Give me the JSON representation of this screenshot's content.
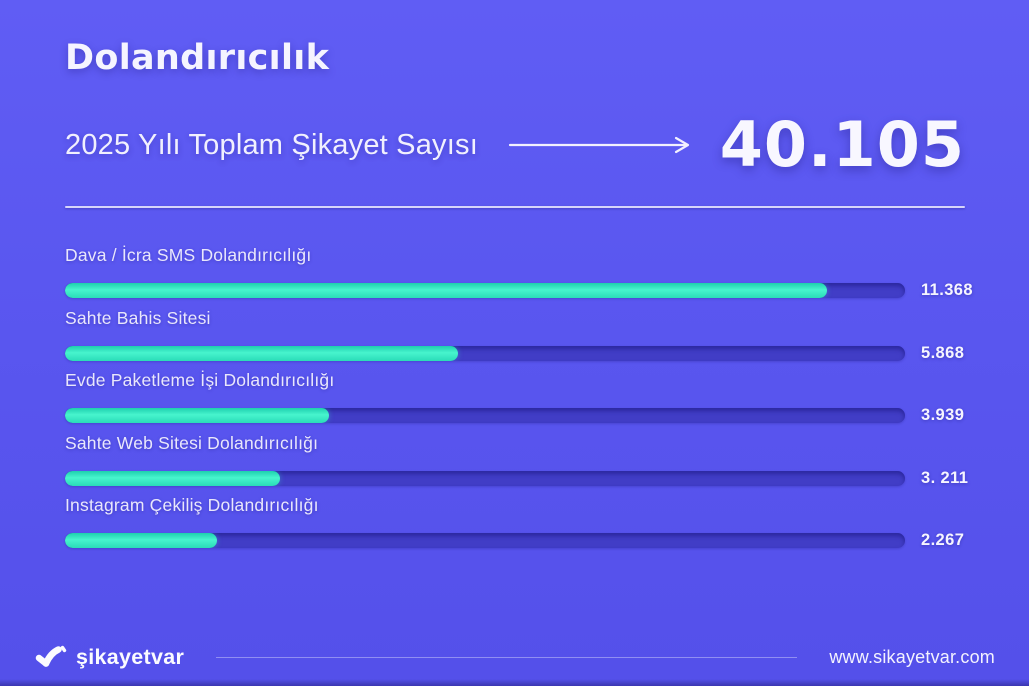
{
  "header": {
    "title": "Dolandırıcılık",
    "subtitle": "2025 Yılı Toplam Şikayet Sayısı",
    "total_display": "40.105"
  },
  "chart_data": {
    "type": "bar",
    "orientation": "horizontal",
    "title": "Dolandırıcılık",
    "subtitle": "2025 Yılı Toplam Şikayet Sayısı",
    "total": 40105,
    "total_display": "40.105",
    "categories": [
      "Dava / İcra SMS Dolandırıcılığı",
      "Sahte Bahis Sitesi",
      "Evde Paketleme İşi Dolandırıcılığı",
      "Sahte Web Sitesi Dolandırıcılığı",
      "Instagram Çekiliş Dolandırıcılığı"
    ],
    "values": [
      11368,
      5868,
      3939,
      3211,
      2267
    ],
    "value_labels": [
      "11.368",
      "5.868",
      "3.939",
      "3. 211",
      "2.267"
    ],
    "axis_max": 12534,
    "legend": "none",
    "grid": "off",
    "bar_color": "#35ecc6",
    "track_color": "#413dc6",
    "background_color": "#5a57f0",
    "text_color": "#f5f4ff"
  },
  "rows": [
    {
      "label": "Dava / İcra SMS Dolandırıcılığı",
      "value": "11.368"
    },
    {
      "label": "Sahte Bahis Sitesi",
      "value": "5.868"
    },
    {
      "label": "Evde Paketleme İşi Dolandırıcılığı",
      "value": "3.939"
    },
    {
      "label": "Sahte Web Sitesi Dolandırıcılığı",
      "value": "3. 211"
    },
    {
      "label": "Instagram Çekiliş Dolandırıcılığı",
      "value": "2.267"
    }
  ],
  "footer": {
    "brand": "şikayetvar",
    "website": "www.sikayetvar.com"
  }
}
